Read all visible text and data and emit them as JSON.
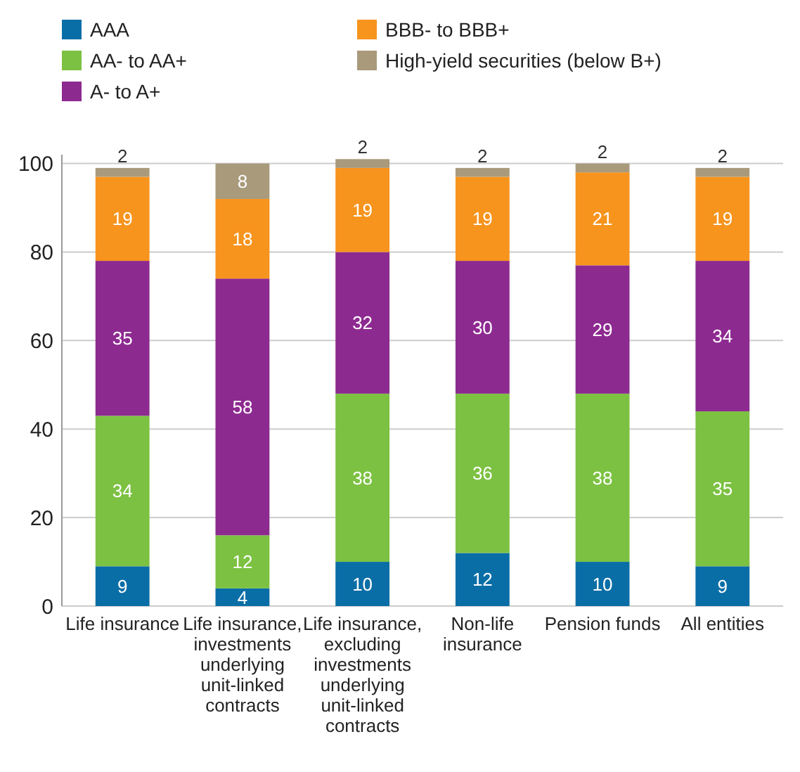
{
  "chart_data": {
    "type": "bar",
    "stacked": true,
    "categories": [
      "Life insurance",
      "Life insurance, investments underlying unit-linked contracts",
      "Life insurance, excluding investments underlying unit-linked contracts",
      "Non-life insurance",
      "Pension funds",
      "All entities"
    ],
    "series": [
      {
        "name": "AAA",
        "color": "#0a6ea6",
        "values": [
          9,
          4,
          10,
          12,
          10,
          9
        ]
      },
      {
        "name": "AA- to AA+",
        "color": "#7cc142",
        "values": [
          34,
          12,
          38,
          36,
          38,
          35
        ]
      },
      {
        "name": "A- to A+",
        "color": "#8d2a90",
        "values": [
          35,
          58,
          32,
          30,
          29,
          34
        ]
      },
      {
        "name": "BBB- to BBB+",
        "color": "#f7941d",
        "values": [
          19,
          18,
          19,
          19,
          21,
          19
        ]
      },
      {
        "name": "High-yield securities (below B+)",
        "color": "#a99a7c",
        "values": [
          2,
          8,
          2,
          2,
          2,
          2
        ]
      }
    ],
    "ylim": [
      0,
      102
    ],
    "yticks": [
      0,
      20,
      40,
      60,
      80,
      100
    ],
    "grid": "y",
    "legend": "top",
    "data_labels": true
  }
}
